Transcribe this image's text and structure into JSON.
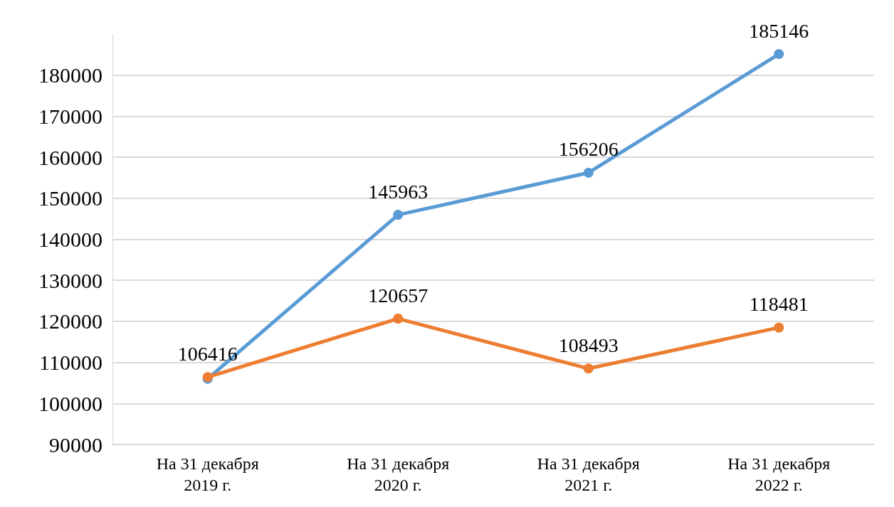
{
  "chart_data": {
    "type": "line",
    "categories": [
      "На 31 декабря\n2019 г.",
      "На 31 декабря\n2020 г.",
      "На 31 декабря\n2021 г.",
      "На 31 декабря\n2022 г."
    ],
    "series": [
      {
        "color": "#5b9bd5",
        "values": [
          106000,
          145963,
          156206,
          185146
        ],
        "value_labels": [
          null,
          "145963",
          "156206",
          "185146"
        ]
      },
      {
        "color": "#ed7d31",
        "values": [
          106416,
          120657,
          108493,
          118481
        ],
        "value_labels": [
          "106416",
          "120657",
          "108493",
          "118481"
        ]
      }
    ],
    "ylim": [
      90000,
      190000
    ],
    "yticks": [
      90000,
      100000,
      110000,
      120000,
      130000,
      140000,
      150000,
      160000,
      170000,
      180000
    ],
    "grid": "y",
    "marker": "circle",
    "line_style": "solid"
  }
}
